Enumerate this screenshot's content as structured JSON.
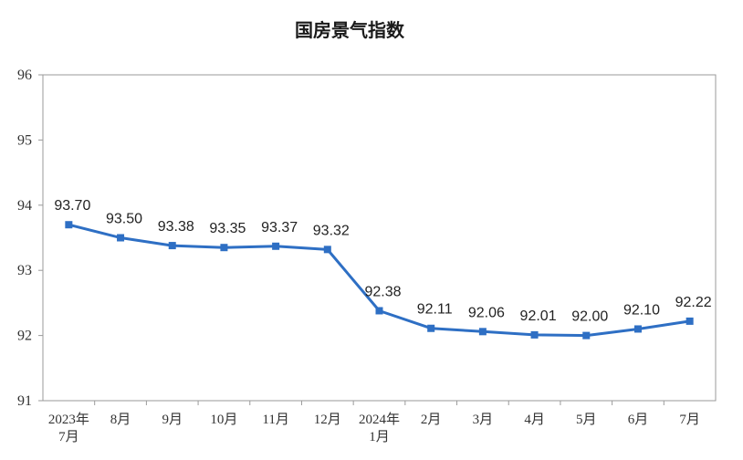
{
  "chart_data": {
    "type": "line",
    "title": "国房景气指数",
    "categories": [
      [
        "2023年",
        "7月"
      ],
      [
        "8月"
      ],
      [
        "9月"
      ],
      [
        "10月"
      ],
      [
        "11月"
      ],
      [
        "12月"
      ],
      [
        "2024年",
        "1月"
      ],
      [
        "2月"
      ],
      [
        "3月"
      ],
      [
        "4月"
      ],
      [
        "5月"
      ],
      [
        "6月"
      ],
      [
        "7月"
      ]
    ],
    "values": [
      93.7,
      93.5,
      93.38,
      93.35,
      93.37,
      93.32,
      92.38,
      92.11,
      92.06,
      92.01,
      92.0,
      92.1,
      92.22
    ],
    "value_labels": [
      "93.70",
      "93.50",
      "93.38",
      "93.35",
      "93.37",
      "93.32",
      "92.38",
      "92.11",
      "92.06",
      "92.01",
      "92.00",
      "92.10",
      "92.22"
    ],
    "ylim": [
      91,
      96
    ],
    "yticks": [
      91,
      92,
      93,
      94,
      95,
      96
    ],
    "grid": false,
    "line_color": "#2e6fc4"
  }
}
